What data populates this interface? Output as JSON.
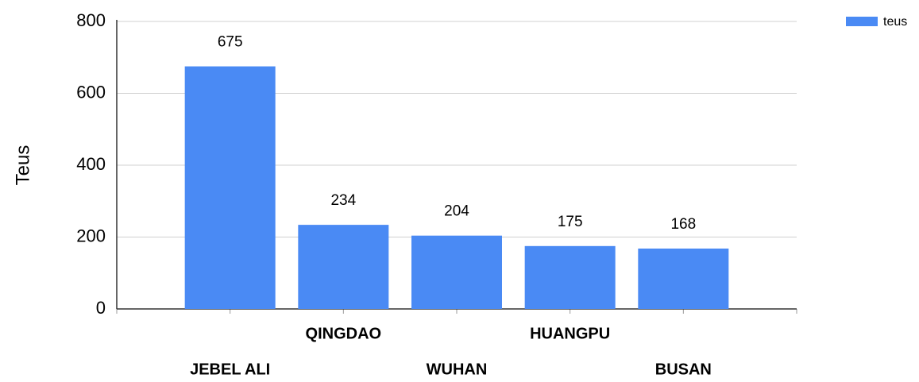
{
  "chart_data": {
    "type": "bar",
    "y_label": "Teus",
    "categories": [
      "JEBEL ALI",
      "QINGDAO",
      "WUHAN",
      "HUANGPU",
      "BUSAN"
    ],
    "series": [
      {
        "name": "teus",
        "color": "#4a8af4",
        "values": [
          675,
          234,
          204,
          175,
          168
        ]
      }
    ],
    "ylim": [
      0,
      800
    ],
    "yticks": [
      0,
      200,
      400,
      600,
      800
    ],
    "grid": true,
    "legend": "top-right",
    "data_labels": true
  }
}
